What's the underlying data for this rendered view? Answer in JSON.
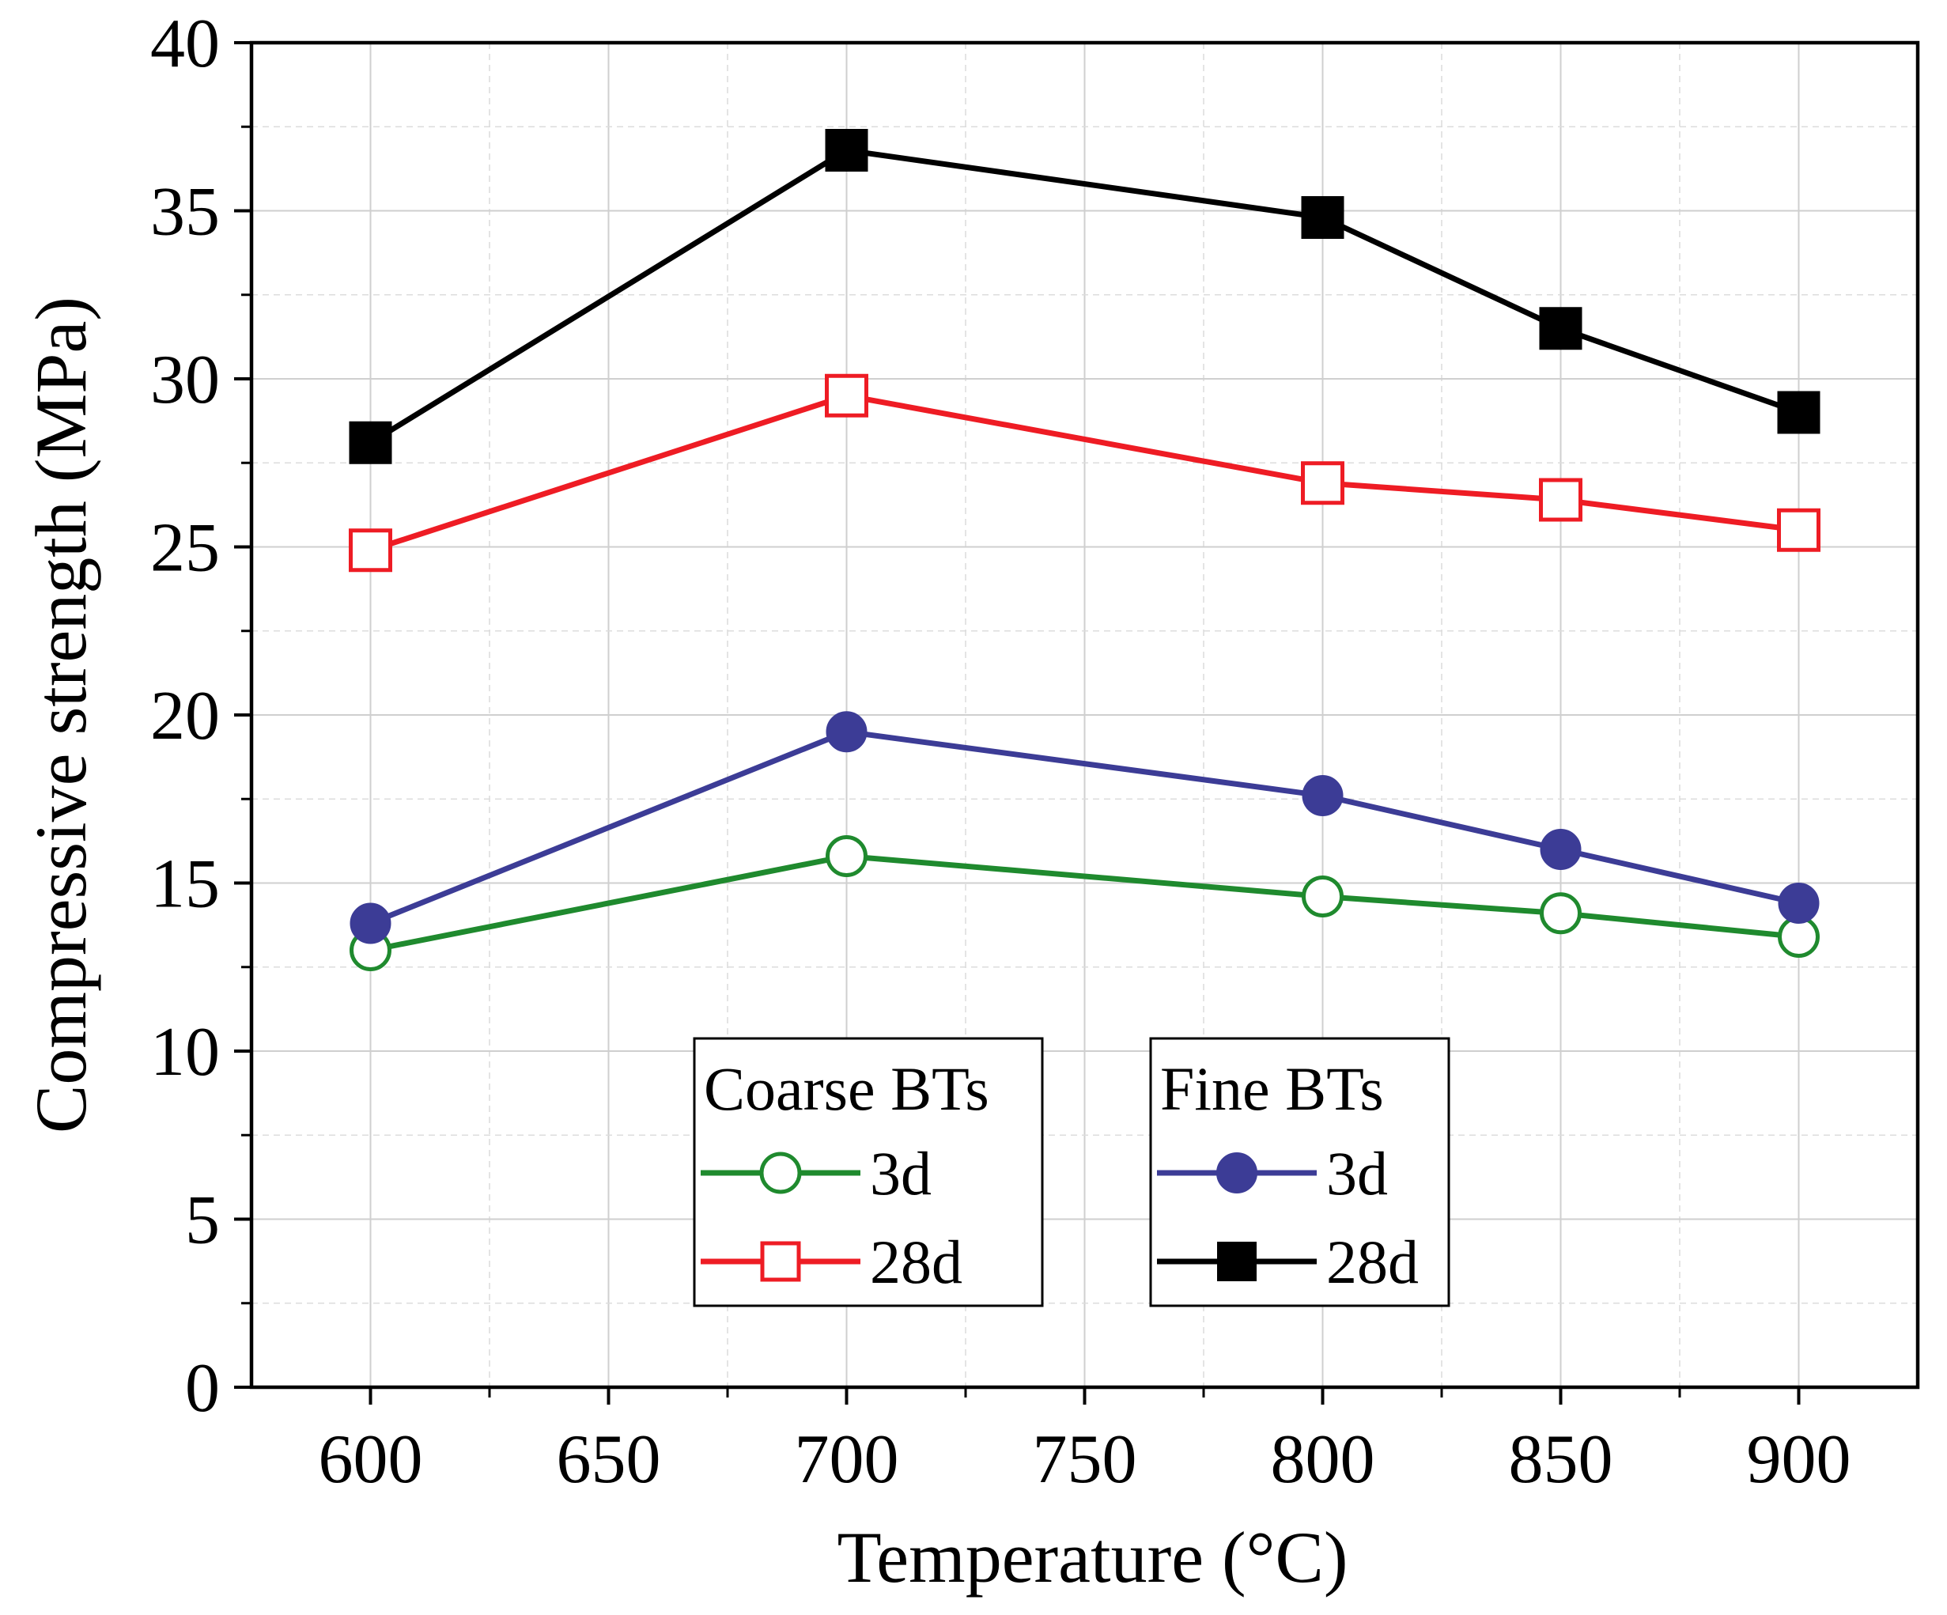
{
  "chart_data": {
    "type": "line",
    "title": "",
    "xlabel": "Temperature (°C)",
    "ylabel": "Compressive strength (MPa)",
    "xlim": [
      575,
      925
    ],
    "ylim": [
      0,
      40
    ],
    "xticks": [
      "600",
      "650",
      "700",
      "750",
      "800",
      "850",
      "900"
    ],
    "yticks": [
      "0",
      "5",
      "10",
      "15",
      "20",
      "25",
      "30",
      "35",
      "40"
    ],
    "grid": true,
    "x": [
      600,
      700,
      800,
      850,
      900
    ],
    "series": [
      {
        "name": "Coarse BTs 3d",
        "group": "Coarse BTs",
        "age": "3d",
        "color": "#1f8a2e",
        "marker": "circle",
        "filled": false,
        "values": [
          13.0,
          15.8,
          14.6,
          14.1,
          13.4
        ]
      },
      {
        "name": "Coarse BTs 28d",
        "group": "Coarse BTs",
        "age": "28d",
        "color": "#ee1c24",
        "marker": "square",
        "filled": false,
        "values": [
          24.9,
          29.5,
          26.9,
          26.4,
          25.5
        ]
      },
      {
        "name": "Fine BTs 3d",
        "group": "Fine BTs",
        "age": "3d",
        "color": "#3c3c96",
        "marker": "circle",
        "filled": true,
        "values": [
          13.8,
          19.5,
          17.6,
          16.0,
          14.4
        ]
      },
      {
        "name": "Fine BTs 28d",
        "group": "Fine BTs",
        "age": "28d",
        "color": "#000000",
        "marker": "square",
        "filled": true,
        "values": [
          28.1,
          36.8,
          34.8,
          31.5,
          29.0
        ]
      }
    ],
    "legend": {
      "placement": "bottom-center",
      "groups": [
        {
          "title": "Coarse BTs",
          "entries": [
            "3d",
            "28d"
          ]
        },
        {
          "title": "Fine BTs",
          "entries": [
            "3d",
            "28d"
          ]
        }
      ]
    }
  }
}
